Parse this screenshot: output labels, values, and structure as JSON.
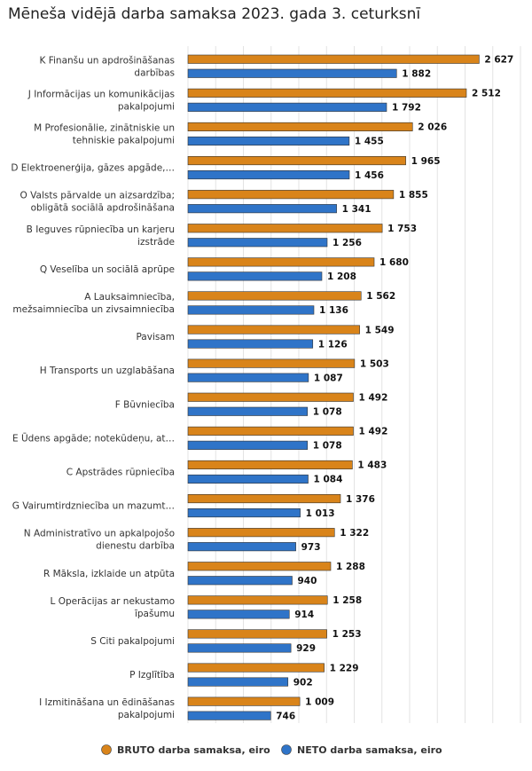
{
  "chart_data": {
    "type": "bar",
    "orientation": "horizontal",
    "title": "Mēneša vidējā darba samaksa 2023. gada 3. ceturksnī",
    "categories": [
      [
        "K Finanšu un apdrošināšanas",
        "darbības"
      ],
      [
        "J Informācijas un komunikācijas",
        "pakalpojumi"
      ],
      [
        "M Profesionālie, zinātniskie un",
        "tehniskie pakalpojumi"
      ],
      [
        "D Elektroenerģija, gāzes apgāde,…"
      ],
      [
        "O Valsts pārvalde un aizsardzība;",
        "obligātā sociālā apdrošināšana"
      ],
      [
        "B Ieguves rūpniecība un karjeru",
        "izstrāde"
      ],
      [
        "Q Veselība un sociālā aprūpe"
      ],
      [
        "A Lauksaimniecība,",
        "mežsaimniecība un zivsaimniecība"
      ],
      [
        "Pavisam"
      ],
      [
        "H Transports un uzglabāšana"
      ],
      [
        "F Būvniecība"
      ],
      [
        "E Ūdens apgāde; notekūdeņu, at…"
      ],
      [
        "C Apstrādes rūpniecība"
      ],
      [
        "G Vairumtirdzniecība un mazumt…"
      ],
      [
        "N Administratīvo un apkalpojošo",
        "dienestu darbība"
      ],
      [
        "R Māksla, izklaide un atpūta"
      ],
      [
        "L Operācijas ar nekustamo",
        "īpašumu"
      ],
      [
        "S Citi pakalpojumi"
      ],
      [
        "P Izglītība"
      ],
      [
        "I Izmitināšana un ēdināšanas",
        "pakalpojumi"
      ]
    ],
    "series": [
      {
        "name": "BRUTO darba samaksa, eiro",
        "color": "#d9841a",
        "values": [
          2627,
          2512,
          2026,
          1965,
          1855,
          1753,
          1680,
          1562,
          1549,
          1503,
          1492,
          1492,
          1483,
          1376,
          1322,
          1288,
          1258,
          1253,
          1229,
          1009
        ],
        "labels": [
          "2 627",
          "2 512",
          "2 026",
          "1 965",
          "1 855",
          "1 753",
          "1 680",
          "1 562",
          "1 549",
          "1 503",
          "1 492",
          "1 492",
          "1 483",
          "1 376",
          "1 322",
          "1 288",
          "1 258",
          "1 253",
          "1 229",
          "1 009"
        ]
      },
      {
        "name": "NETO darba samaksa, eiro",
        "color": "#2f74c8",
        "values": [
          1882,
          1792,
          1455,
          1456,
          1341,
          1256,
          1208,
          1136,
          1126,
          1087,
          1078,
          1078,
          1084,
          1013,
          973,
          940,
          914,
          929,
          902,
          746
        ],
        "labels": [
          "1 882",
          "1 792",
          "1 455",
          "1 456",
          "1 341",
          "1 256",
          "1 208",
          "1 136",
          "1 126",
          "1 087",
          "1 078",
          "1 078",
          "1 084",
          "1 013",
          "973",
          "940",
          "914",
          "929",
          "902",
          "746"
        ]
      }
    ],
    "xlim": [
      0,
      3000
    ],
    "grid": true,
    "legend_position": "bottom"
  }
}
